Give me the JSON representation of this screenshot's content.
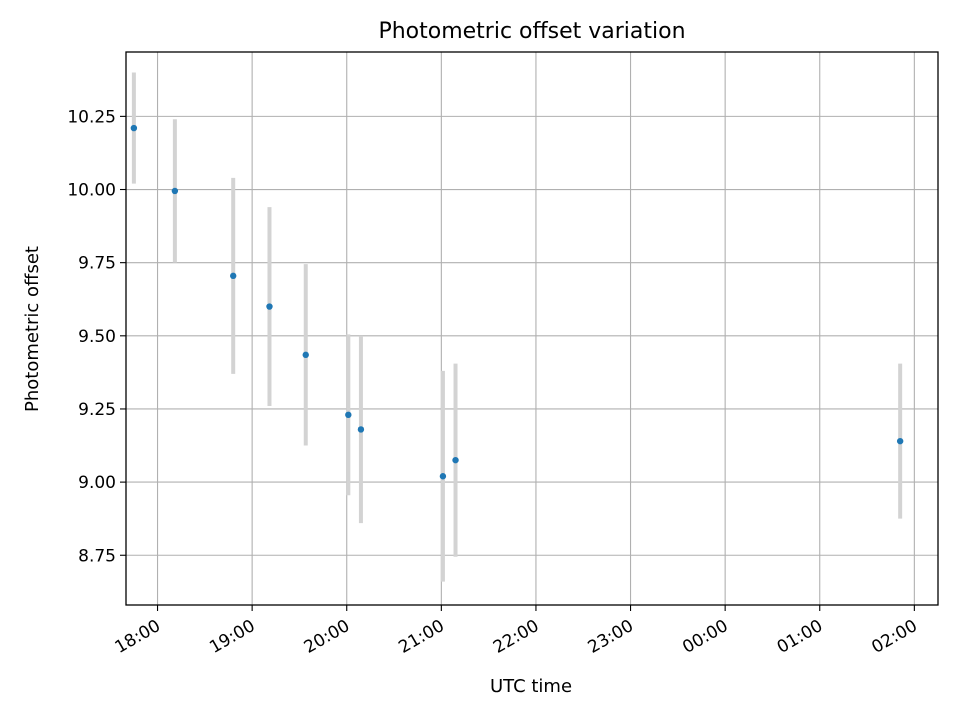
{
  "chart_data": {
    "type": "scatter",
    "title": "Photometric offset variation",
    "xlabel": "UTC time",
    "ylabel": "Photometric offset",
    "x_ticks": [
      "18:00",
      "19:00",
      "20:00",
      "21:00",
      "22:00",
      "23:00",
      "00:00",
      "01:00",
      "02:00"
    ],
    "y_ticks": [
      "8.75",
      "9.00",
      "9.25",
      "9.50",
      "9.75",
      "10.00",
      "10.25"
    ],
    "xlim": [
      "17:40",
      "02:15"
    ],
    "ylim": [
      8.58,
      10.47
    ],
    "grid": true,
    "series": [
      {
        "marker_color": "#1f77b4",
        "errorbar_color": "#d3d3d3",
        "points": [
          {
            "x": "17:45",
            "y": 10.21,
            "err": 0.19
          },
          {
            "x": "18:11",
            "y": 9.995,
            "err": 0.245
          },
          {
            "x": "18:48",
            "y": 9.705,
            "err": 0.335
          },
          {
            "x": "19:11",
            "y": 9.6,
            "err": 0.34
          },
          {
            "x": "19:34",
            "y": 9.435,
            "err": 0.31
          },
          {
            "x": "20:01",
            "y": 9.23,
            "err": 0.275
          },
          {
            "x": "20:09",
            "y": 9.18,
            "err": 0.32
          },
          {
            "x": "21:01",
            "y": 9.02,
            "err": 0.36
          },
          {
            "x": "21:09",
            "y": 9.075,
            "err": 0.33
          },
          {
            "x": "01:51",
            "y": 9.14,
            "err": 0.265
          }
        ]
      }
    ]
  }
}
